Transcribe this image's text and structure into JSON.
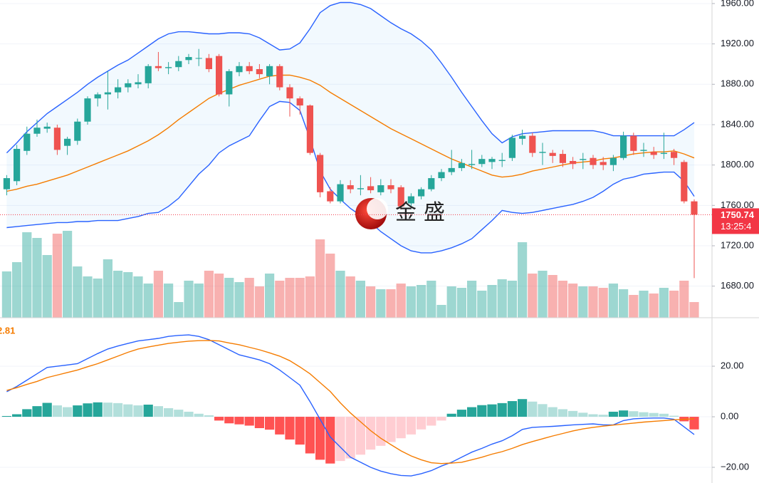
{
  "chart_data": [
    {
      "type": "candlestick",
      "open": [
        1776,
        1784,
        1814,
        1831,
        1836,
        1837,
        1819,
        1824,
        1843,
        1866,
        1870,
        1872,
        1877,
        1880,
        1881,
        1898,
        1896,
        1897,
        1904,
        1906,
        1906,
        1908,
        1870,
        1892,
        1898,
        1895,
        1888,
        1898,
        1877,
        1866,
        1859,
        1810,
        1774,
        1764,
        1780,
        1776,
        1779,
        1773,
        1780,
        1778,
        1762,
        1769,
        1776,
        1787,
        1793,
        1797,
        1800,
        1801,
        1803,
        1804,
        1807,
        1826,
        1829,
        1812,
        1812,
        1811,
        1804,
        1805,
        1807,
        1803,
        1800,
        1807,
        1829,
        1814,
        1813,
        1811,
        1813,
        1803,
        1764
      ],
      "high": [
        1790,
        1820,
        1838,
        1845,
        1842,
        1840,
        1828,
        1846,
        1868,
        1872,
        1893,
        1885,
        1885,
        1890,
        1900,
        1912,
        1902,
        1908,
        1910,
        1915,
        1910,
        1910,
        1895,
        1902,
        1902,
        1900,
        1900,
        1900,
        1880,
        1868,
        1860,
        1812,
        1778,
        1785,
        1785,
        1790,
        1788,
        1786,
        1786,
        1780,
        1772,
        1778,
        1790,
        1796,
        1815,
        1806,
        1815,
        1810,
        1808,
        1812,
        1830,
        1835,
        1832,
        1822,
        1815,
        1815,
        1808,
        1812,
        1810,
        1808,
        1810,
        1833,
        1832,
        1822,
        1818,
        1832,
        1816,
        1805,
        1766
      ],
      "low": [
        1770,
        1780,
        1810,
        1828,
        1832,
        1810,
        1810,
        1820,
        1840,
        1858,
        1855,
        1866,
        1872,
        1876,
        1876,
        1893,
        1890,
        1893,
        1900,
        1898,
        1892,
        1868,
        1858,
        1888,
        1890,
        1886,
        1880,
        1874,
        1848,
        1850,
        1810,
        1768,
        1762,
        1762,
        1772,
        1770,
        1772,
        1770,
        1772,
        1756,
        1758,
        1766,
        1774,
        1784,
        1790,
        1794,
        1796,
        1798,
        1796,
        1798,
        1804,
        1820,
        1808,
        1800,
        1802,
        1798,
        1796,
        1796,
        1796,
        1795,
        1794,
        1805,
        1810,
        1808,
        1806,
        1806,
        1800,
        1762,
        1688
      ],
      "close": [
        1787,
        1816,
        1831,
        1837,
        1838,
        1815,
        1826,
        1843,
        1866,
        1870,
        1872,
        1877,
        1881,
        1882,
        1898,
        1896,
        1897,
        1903,
        1907,
        1906,
        1895,
        1870,
        1893,
        1898,
        1893,
        1890,
        1898,
        1877,
        1866,
        1859,
        1812,
        1773,
        1764,
        1781,
        1776,
        1777,
        1775,
        1780,
        1776,
        1759,
        1769,
        1776,
        1787,
        1793,
        1797,
        1802,
        1801,
        1806,
        1806,
        1805,
        1827,
        1829,
        1812,
        1813,
        1809,
        1802,
        1801,
        1806,
        1800,
        1800,
        1807,
        1829,
        1814,
        1815,
        1810,
        1812,
        1807,
        1764,
        1750.74
      ],
      "up_color": "#26a69a",
      "down_color": "#ef5350",
      "series": [
        {
          "color": "#2962ff",
          "values": [
            1812,
            1822,
            1833,
            1842,
            1851,
            1858,
            1865,
            1872,
            1880,
            1887,
            1893,
            1899,
            1904,
            1911,
            1918,
            1925,
            1930,
            1932,
            1932,
            1931,
            1930,
            1930,
            1931,
            1931,
            1930,
            1926,
            1920,
            1914,
            1915,
            1921,
            1935,
            1951,
            1958,
            1961,
            1961,
            1959,
            1955,
            1948,
            1941,
            1935,
            1930,
            1923,
            1914,
            1901,
            1887,
            1872,
            1858,
            1844,
            1831,
            1822,
            1828,
            1831,
            1832,
            1833,
            1834,
            1834,
            1834,
            1834,
            1834,
            1832,
            1829,
            1829,
            1829,
            1829,
            1829,
            1829,
            1829,
            1835,
            1842
          ]
        },
        {
          "color": "#f57c00",
          "values": [
            1774,
            1776,
            1779,
            1781,
            1784,
            1787,
            1790,
            1794,
            1798,
            1802,
            1806,
            1810,
            1814,
            1819,
            1824,
            1830,
            1837,
            1845,
            1852,
            1859,
            1866,
            1871,
            1875,
            1879,
            1882,
            1885,
            1888,
            1889,
            1889,
            1887,
            1884,
            1879,
            1872,
            1866,
            1860,
            1854,
            1848,
            1842,
            1836,
            1831,
            1826,
            1821,
            1816,
            1811,
            1806,
            1802,
            1798,
            1794,
            1790,
            1788,
            1789,
            1791,
            1794,
            1796,
            1798,
            1800,
            1802,
            1803,
            1804,
            1806,
            1807,
            1809,
            1811,
            1812,
            1813,
            1813,
            1814,
            1811,
            1807
          ]
        },
        {
          "color": "#2962ff",
          "values": [
            1738,
            1739,
            1740,
            1741,
            1742,
            1743,
            1743,
            1744,
            1744,
            1745,
            1745,
            1745,
            1747,
            1749,
            1752,
            1753,
            1759,
            1767,
            1779,
            1791,
            1800,
            1812,
            1819,
            1824,
            1829,
            1844,
            1858,
            1863,
            1862,
            1854,
            1826,
            1794,
            1776,
            1766,
            1757,
            1750,
            1743,
            1734,
            1727,
            1720,
            1715,
            1713,
            1713,
            1715,
            1718,
            1722,
            1727,
            1736,
            1745,
            1755,
            1753,
            1752,
            1753,
            1755,
            1757,
            1759,
            1761,
            1764,
            1768,
            1774,
            1781,
            1786,
            1788,
            1791,
            1792,
            1793,
            1793,
            1784,
            1769
          ]
        }
      ],
      "band_fill": "#2196f3",
      "volume": [
        65,
        78,
        120,
        112,
        88,
        118,
        122,
        72,
        58,
        55,
        82,
        66,
        64,
        58,
        48,
        66,
        48,
        22,
        52,
        48,
        66,
        62,
        56,
        50,
        56,
        44,
        62,
        52,
        56,
        56,
        58,
        110,
        90,
        66,
        58,
        52,
        44,
        40,
        40,
        48,
        44,
        46,
        52,
        18,
        44,
        42,
        52,
        38,
        46,
        54,
        52,
        106,
        62,
        66,
        60,
        52,
        48,
        44,
        44,
        42,
        48,
        40,
        32,
        38,
        34,
        42,
        38,
        52,
        22
      ],
      "volume_lim": [
        0,
        130
      ],
      "ylim": [
        1648.7,
        1963.5
      ],
      "yticks": [
        {
          "value": 1680,
          "label": "1680.00"
        },
        {
          "value": 1720,
          "label": "1720.00"
        },
        {
          "value": 1760,
          "label": "1760.00"
        },
        {
          "value": 1800,
          "label": "1800.00"
        },
        {
          "value": 1840,
          "label": "1840.00"
        },
        {
          "value": 1880,
          "label": "1880.00"
        },
        {
          "value": 1920,
          "label": "1920.00"
        },
        {
          "value": 1960,
          "label": "1960.00"
        }
      ],
      "grid": true,
      "last_price": 1750.74,
      "last_price_color": "#f23645",
      "countdown": "13:25:4",
      "watermark": "金盛"
    },
    {
      "type": "macd",
      "indicator_value": "2.81",
      "series": [
        {
          "color": "#2962ff",
          "values": [
            9.9,
            12,
            14.5,
            17,
            19.5,
            20,
            20.5,
            21,
            23,
            25,
            26.8,
            28,
            29,
            30,
            30.5,
            31,
            31.8,
            32.2,
            32.4,
            31.8,
            30.5,
            28.5,
            26.5,
            24.5,
            23.5,
            22.5,
            21,
            18.5,
            15.5,
            12.5,
            6,
            -1,
            -8,
            -12,
            -16,
            -18,
            -20,
            -21.5,
            -22.5,
            -23.2,
            -23.4,
            -22.5,
            -21.3,
            -19.5,
            -18,
            -16,
            -14,
            -12.5,
            -10.8,
            -9.5,
            -7.5,
            -5,
            -4.2,
            -4,
            -3.8,
            -3.5,
            -3.2,
            -3,
            -2.8,
            -3.2,
            -3.2,
            -1.5,
            -0.8,
            -0.6,
            -0.5,
            -0.5,
            -1,
            -4,
            -7
          ]
        },
        {
          "color": "#f57c00",
          "values": [
            10.4,
            11.5,
            12.8,
            14,
            15.5,
            16.5,
            17.5,
            18.5,
            19.8,
            21,
            22.5,
            24,
            25.5,
            26.8,
            27.6,
            28.3,
            29,
            29.5,
            29.9,
            30.1,
            30.2,
            30,
            29.2,
            28.5,
            27.5,
            26.5,
            25.3,
            24,
            22.2,
            19.7,
            17,
            13.5,
            10,
            5.5,
            1.5,
            -2,
            -5.5,
            -8.5,
            -11,
            -13.5,
            -15.5,
            -17,
            -18.2,
            -18.5,
            -18.3,
            -18,
            -17,
            -16,
            -14.8,
            -13.8,
            -12.5,
            -11,
            -9.8,
            -8.7,
            -7.6,
            -6.6,
            -5.6,
            -4.8,
            -4.2,
            -3.7,
            -3.3,
            -2.9,
            -2.5,
            -2.1,
            -1.8,
            -1.5,
            -1.2,
            -1,
            -0.8
          ]
        }
      ],
      "histogram": [
        0.3,
        1,
        3,
        4.2,
        5.5,
        4.5,
        3.8,
        4.5,
        5.3,
        5.7,
        5.6,
        5.4,
        4.9,
        4.5,
        4.8,
        4.2,
        3.4,
        2.8,
        2,
        1.2,
        0.6,
        -1.5,
        -2.6,
        -3,
        -3.5,
        -4.5,
        -5.1,
        -7,
        -9,
        -11,
        -14.5,
        -17,
        -18.5,
        -17.5,
        -16.5,
        -15,
        -13,
        -11.5,
        -10,
        -8.5,
        -7,
        -5,
        -3.5,
        -1.5,
        1.2,
        2.8,
        3.8,
        4.6,
        4.9,
        5.4,
        6.2,
        7,
        6,
        5,
        3.8,
        3,
        2.3,
        1.6,
        1,
        0.8,
        2,
        2.5,
        2.2,
        1.8,
        1.5,
        1.2,
        0.4,
        -1.8,
        -5
      ],
      "histogram_colors": [
        "#26a69a",
        "#b2dfdb",
        "#ff5252",
        "#ffcdd2"
      ],
      "ylim": [
        -26.2,
        38.9
      ],
      "yticks": [
        {
          "value": -20,
          "label": "−20.00"
        },
        {
          "value": 0,
          "label": "0.00"
        },
        {
          "value": 20,
          "label": "20.00"
        }
      ],
      "grid": true
    }
  ]
}
